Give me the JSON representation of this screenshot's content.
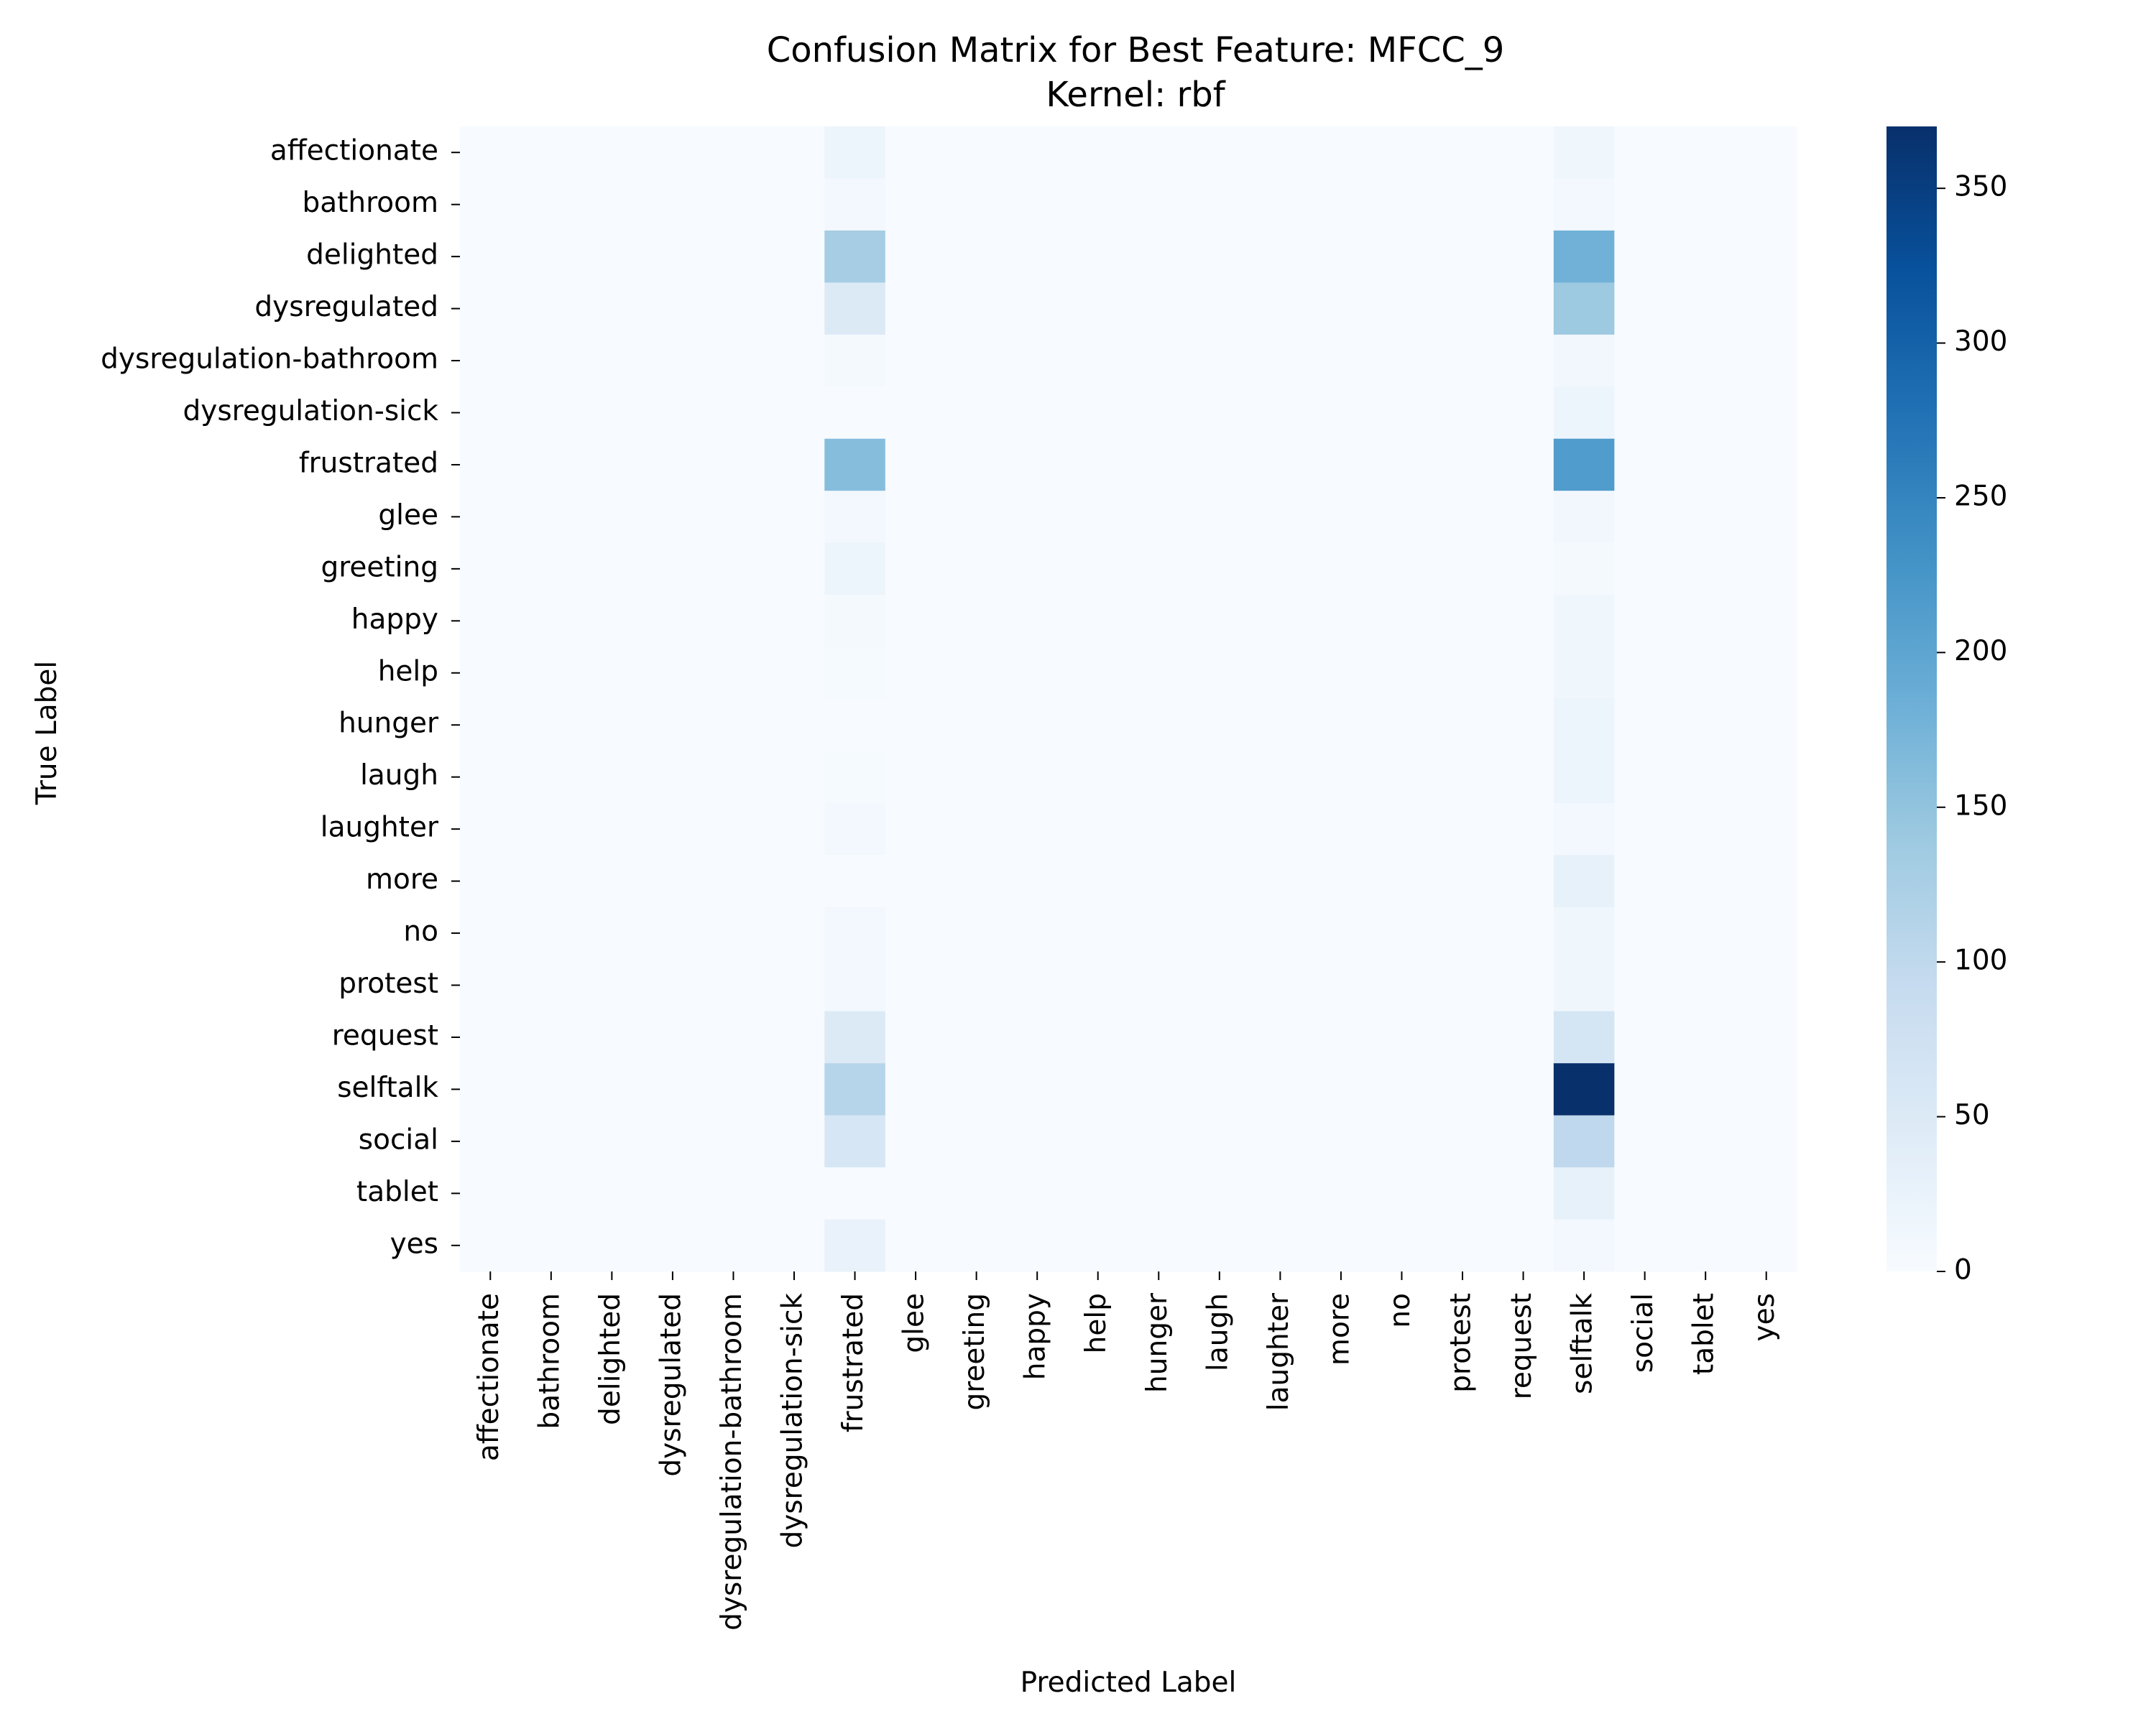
{
  "chart_data": {
    "type": "heatmap",
    "title": "Confusion Matrix for Best Feature: MFCC_9",
    "subtitle": "Kernel: rbf",
    "xlabel": "Predicted Label",
    "ylabel": "True Label",
    "labels": [
      "affectionate",
      "bathroom",
      "delighted",
      "dysregulated",
      "dysregulation-bathroom",
      "dysregulation-sick",
      "frustrated",
      "glee",
      "greeting",
      "happy",
      "help",
      "hunger",
      "laugh",
      "laughter",
      "more",
      "no",
      "protest",
      "request",
      "selftalk",
      "social",
      "tablet",
      "yes"
    ],
    "nonzero_columns": [
      "frustrated",
      "selftalk"
    ],
    "frustrated_column": [
      20,
      10,
      130,
      50,
      6,
      0,
      160,
      10,
      18,
      5,
      4,
      0,
      3,
      8,
      0,
      10,
      10,
      50,
      110,
      60,
      0,
      25
    ],
    "selftalk_column": [
      15,
      10,
      180,
      140,
      12,
      20,
      215,
      12,
      5,
      15,
      15,
      20,
      20,
      8,
      30,
      15,
      15,
      65,
      370,
      100,
      30,
      8
    ],
    "colorbar": {
      "min": 0,
      "max": 370,
      "ticks": [
        0,
        50,
        100,
        150,
        200,
        250,
        300,
        350
      ],
      "colormap": "Blues"
    },
    "colors": {
      "low": "#f7fbff",
      "high": "#08306b"
    }
  }
}
